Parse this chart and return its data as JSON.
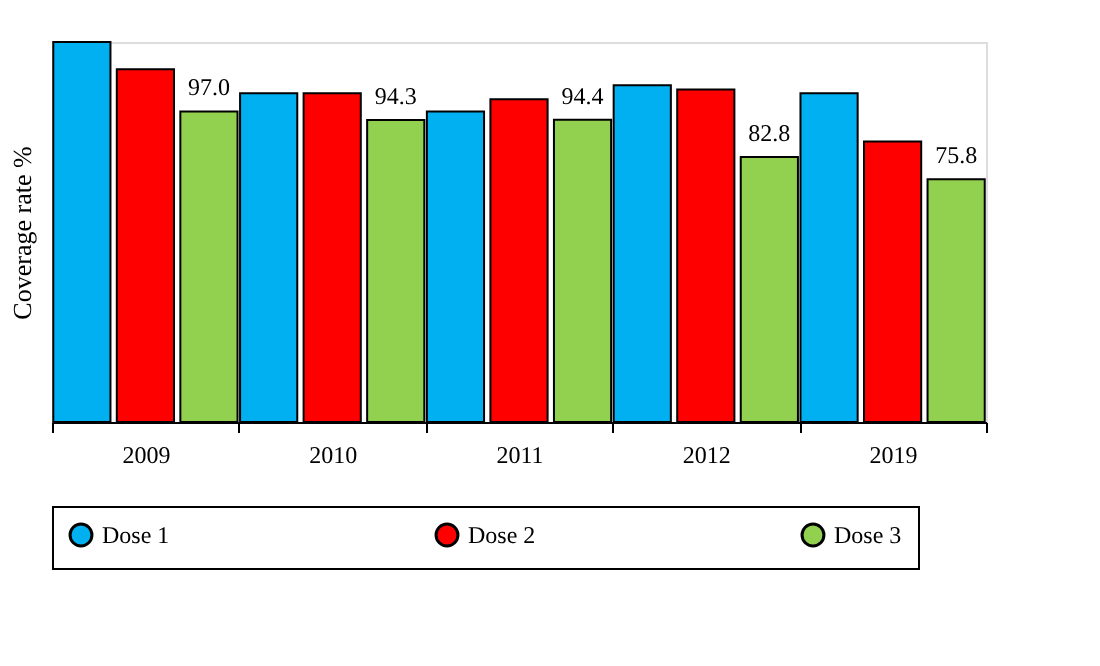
{
  "chart_data": {
    "type": "bar",
    "ylabel": "Coverage rate %",
    "ylim": [
      0,
      118.7
    ],
    "tick_labels": "x",
    "categories": [
      "2009",
      "2010",
      "2011",
      "2012",
      "2019"
    ],
    "series": [
      {
        "name": "Dose 1",
        "color": "#00b0f0",
        "values": [
          118.7,
          102.7,
          97.0,
          105.2,
          102.7
        ]
      },
      {
        "name": "Dose 2",
        "color": "#ff0000",
        "values": [
          110.2,
          102.7,
          100.8,
          103.9,
          87.6
        ]
      },
      {
        "name": "Dose 3",
        "color": "#92d050",
        "values": [
          97.0,
          94.3,
          94.4,
          82.8,
          75.8
        ],
        "value_labels": [
          "97.0",
          "94.3",
          "94.4",
          "82.8",
          "75.8"
        ]
      }
    ],
    "legend": "bottom",
    "grid": false
  }
}
